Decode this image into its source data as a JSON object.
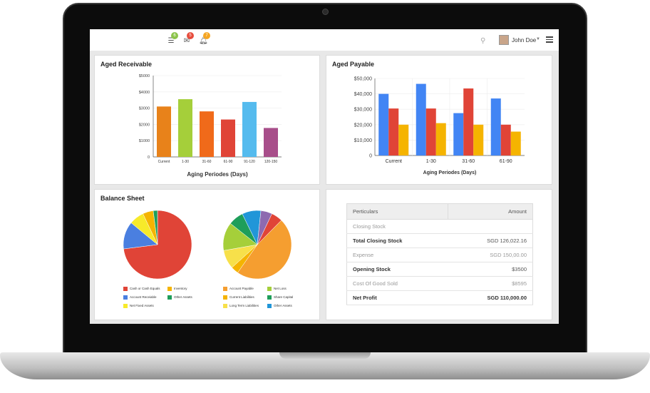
{
  "header": {
    "notifications": [
      {
        "icon": "list-icon",
        "count": "6",
        "color": "#8bc34a"
      },
      {
        "icon": "mail-icon",
        "count": "5",
        "color": "#e74c3c"
      },
      {
        "icon": "bell-icon",
        "count": "7",
        "color": "#f5a623"
      }
    ],
    "user_name": "John Doe"
  },
  "aged_receivable": {
    "title": "Aged Receivable",
    "chart_data": {
      "type": "bar",
      "categories": [
        "Current",
        "1-30",
        "31-60",
        "61-90",
        "91-120",
        "120-150"
      ],
      "values": [
        3100,
        3550,
        2800,
        2300,
        3380,
        1780
      ],
      "colors": [
        "#e8821a",
        "#a5cf3a",
        "#f06a1a",
        "#e04437",
        "#55bbee",
        "#a84e8a"
      ],
      "y_ticks": [
        "0",
        "$1000",
        "$2000",
        "$3000",
        "$4000",
        "$5000"
      ],
      "ylim": [
        0,
        5000
      ],
      "xlabel": "Aging Periodes (Days)"
    }
  },
  "aged_payable": {
    "title": "Aged Payable",
    "chart_data": {
      "type": "bar",
      "categories": [
        "Current",
        "1-30",
        "31-60",
        "61-90"
      ],
      "series": [
        {
          "values": [
            40000,
            46500,
            27500,
            37000
          ],
          "color": "#4285f4"
        },
        {
          "values": [
            30500,
            30500,
            43500,
            20000
          ],
          "color": "#e04437"
        },
        {
          "values": [
            20000,
            21000,
            20000,
            15500
          ],
          "color": "#f5b400"
        }
      ],
      "y_ticks": [
        "0",
        "$10,000",
        "$20,000",
        "$30,000",
        "$40,000",
        "$50,000"
      ],
      "ylim": [
        0,
        50000
      ],
      "xlabel": "Aging Periodes (Days)"
    }
  },
  "balance_sheet": {
    "title": "Balance Sheet",
    "chart_data": [
      {
        "type": "pie",
        "labels": [
          "Cash or Cash Equals",
          "Account Receiable",
          "Net Fixed Assets",
          "Inventory",
          "Other Assets"
        ],
        "values": [
          73,
          13,
          7,
          5,
          2
        ],
        "colors": [
          "#e04437",
          "#4a7fe0",
          "#f7ea2a",
          "#f5b400",
          "#1e9e5a"
        ]
      },
      {
        "type": "pie",
        "labels": [
          "Account Payable",
          "Current Liabilities",
          "Long Term Liabilities",
          "Net Loss",
          "Share Capital",
          "Other Assets"
        ],
        "values": [
          53,
          4,
          10,
          15,
          8,
          10
        ],
        "colors": [
          "#f59e30",
          "#f5b400",
          "#f7e04a",
          "#a5cf3a",
          "#1e9e5a",
          "#2196d8"
        ]
      }
    ],
    "extra_slices": {
      "pie2_purple": "#8e6ab0",
      "pie2_red": "#e04437"
    }
  },
  "summary_table": {
    "headers": [
      "Perticulars",
      "Amount"
    ],
    "rows": [
      {
        "label": "Closing Stock",
        "amount": "",
        "bold": false
      },
      {
        "label": "Total Closing Stock",
        "amount": "SGD 126,022.16",
        "bold": true
      },
      {
        "label": "Expense",
        "amount": "SGD 150,00.00",
        "bold": false
      },
      {
        "label": "Opening Stock",
        "amount": "$3500",
        "bold": true
      },
      {
        "label": "Cost Of Good Sold",
        "amount": "$8595",
        "bold": false
      },
      {
        "label": "Net Profit",
        "amount": "SGD 110,000.00",
        "bold": true,
        "net": true
      }
    ]
  }
}
